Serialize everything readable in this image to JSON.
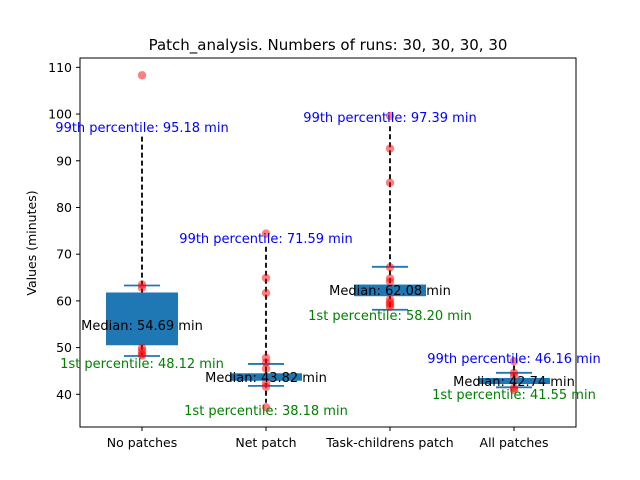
{
  "chart_data": {
    "type": "box",
    "title": "Patch_analysis. Numbers of runs: 30, 30, 30, 30",
    "xlabel": "",
    "ylabel": "Values (minutes)",
    "ylim": [
      33,
      112
    ],
    "yticks": [
      40,
      50,
      60,
      70,
      80,
      90,
      100,
      110
    ],
    "grid": false,
    "categories": [
      "No patches",
      "Net patch",
      "Task-childrens patch",
      "All patches"
    ],
    "runs": [
      30,
      30,
      30,
      30
    ],
    "boxes": [
      {
        "category": "No patches",
        "q1": 50.5,
        "median": 54.69,
        "q3": 61.8,
        "whisker_low": 48.12,
        "whisker_high": 95.18,
        "cap_low": 48.2,
        "cap_high": 63.3,
        "p1": 48.12,
        "p99": 95.18,
        "points": [
          108.3,
          63.5,
          62.8,
          49.9,
          49.3,
          48.6,
          48.3
        ]
      },
      {
        "category": "Net patch",
        "q1": 42.9,
        "median": 43.82,
        "q3": 44.5,
        "whisker_low": 38.18,
        "whisker_high": 71.59,
        "cap_low": 41.8,
        "cap_high": 46.5,
        "p1": 38.18,
        "p99": 71.59,
        "points": [
          74.4,
          64.9,
          61.7,
          47.8,
          46.8,
          45.5,
          42.4,
          41.6,
          37.2
        ]
      },
      {
        "category": "Task-childrens patch",
        "q1": 61.0,
        "median": 62.08,
        "q3": 63.5,
        "whisker_low": 58.2,
        "whisker_high": 97.39,
        "cap_low": 58.1,
        "cap_high": 67.3,
        "p1": 58.2,
        "p99": 97.39,
        "points": [
          99.6,
          92.6,
          85.3,
          67.2,
          64.8,
          64.1,
          60.3,
          59.7,
          59.2,
          58.7
        ]
      },
      {
        "category": "All patches",
        "q1": 42.2,
        "median": 42.74,
        "q3": 43.5,
        "whisker_low": 41.55,
        "whisker_high": 46.16,
        "cap_low": 41.5,
        "cap_high": 44.6,
        "p1": 41.55,
        "p99": 46.16,
        "points": [
          47.1,
          44.6,
          43.9,
          41.4,
          40.9
        ]
      }
    ],
    "annotations": {
      "p99": [
        "99th percentile: 95.18 min",
        "99th percentile: 71.59 min",
        "99th percentile: 97.39 min",
        "99th percentile: 46.16 min"
      ],
      "median": [
        "Median: 54.69 min",
        "Median: 43.82 min",
        "Median: 62.08 min",
        "Median: 42.74 min"
      ],
      "p1": [
        "1st percentile: 48.12 min",
        "1st percentile: 38.18 min",
        "1st percentile: 58.20 min",
        "1st percentile: 41.55 min"
      ]
    },
    "colors": {
      "box_fill": "#1f77b4",
      "cap": "#1f77b4",
      "whisker": "#000000",
      "points": "#ff0000",
      "p99_text": "#0000ff",
      "median_text": "#000000",
      "p1_text": "#008000"
    }
  }
}
